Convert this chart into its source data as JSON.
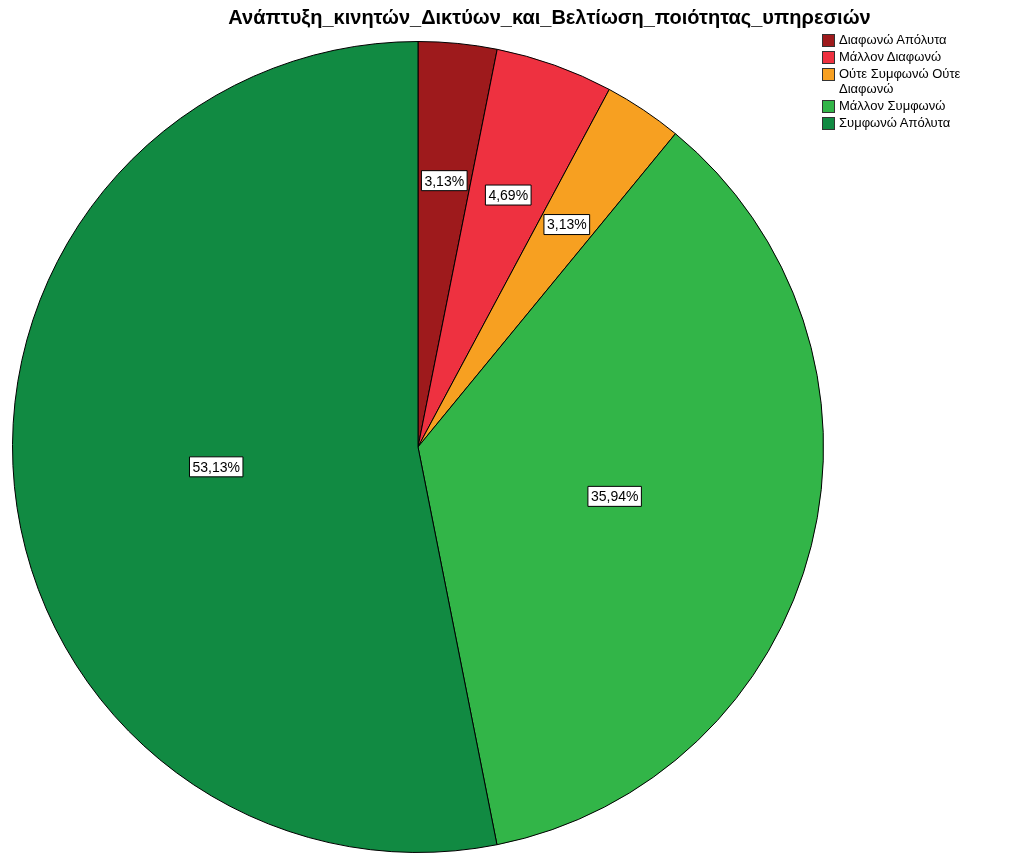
{
  "chart_data": {
    "type": "pie",
    "title": "Ανάπτυξη_κινητών_Δικτύων_και_Βελτίωση_ποιότητας_υπηρεσιών",
    "categories": [
      "Διαφωνώ Απόλυτα",
      "Μάλλον Διαφωνώ",
      "Ούτε Συμφωνώ Ούτε Διαφωνώ",
      "Μάλλον Συμφωνώ",
      "Συμφωνώ Απόλυτα"
    ],
    "values": [
      3.13,
      4.69,
      3.13,
      35.94,
      53.13
    ],
    "colors": [
      "#9e1a1c",
      "#ee3140",
      "#f7a021",
      "#32b548",
      "#118a42"
    ],
    "value_labels": [
      "3,13%",
      "4,69%",
      "3,13%",
      "35,94%",
      "53,13%"
    ],
    "legend": "top right"
  }
}
